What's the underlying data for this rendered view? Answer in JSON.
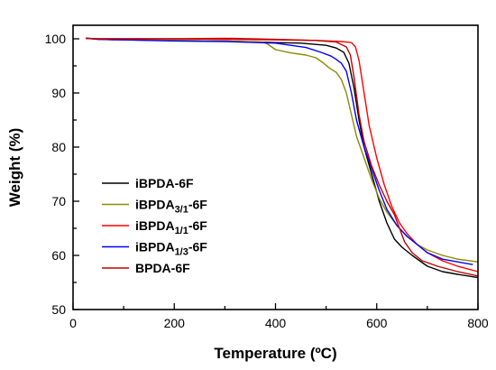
{
  "chart_data": {
    "type": "line",
    "xlabel": "Temperature (ºC)",
    "ylabel": "Weight (%)",
    "xlim": [
      0,
      800
    ],
    "ylim": [
      50,
      102.5
    ],
    "xticks": [
      0,
      200,
      400,
      600,
      800
    ],
    "yticks": [
      50,
      60,
      70,
      80,
      90,
      100
    ],
    "grid": false,
    "legend": "lower-left",
    "series": [
      {
        "name_main": "iBPDA",
        "name_sub": "",
        "name_tail": "-6F",
        "color": "#000000",
        "points": [
          [
            25,
            100.1
          ],
          [
            30,
            100.1
          ],
          [
            50,
            99.9
          ],
          [
            100,
            99.8
          ],
          [
            200,
            99.7
          ],
          [
            300,
            99.6
          ],
          [
            400,
            99.3
          ],
          [
            450,
            99.2
          ],
          [
            500,
            98.8
          ],
          [
            520,
            98.3
          ],
          [
            535,
            97.5
          ],
          [
            545,
            95.5
          ],
          [
            555,
            91
          ],
          [
            565,
            85
          ],
          [
            575,
            80
          ],
          [
            590,
            75
          ],
          [
            605,
            70
          ],
          [
            620,
            66
          ],
          [
            635,
            63
          ],
          [
            650,
            61.5
          ],
          [
            670,
            60
          ],
          [
            700,
            58
          ],
          [
            730,
            57
          ],
          [
            760,
            56.5
          ],
          [
            800,
            55.9
          ]
        ]
      },
      {
        "name_main": "iBPDA",
        "name_sub": "3/1",
        "name_tail": "-6F",
        "color": "#8b8b00",
        "points": [
          [
            25,
            100.1
          ],
          [
            50,
            99.9
          ],
          [
            100,
            99.8
          ],
          [
            200,
            99.7
          ],
          [
            300,
            99.6
          ],
          [
            375,
            99.4
          ],
          [
            385,
            99
          ],
          [
            400,
            98
          ],
          [
            430,
            97.4
          ],
          [
            460,
            97
          ],
          [
            480,
            96.5
          ],
          [
            495,
            95.5
          ],
          [
            505,
            94.7
          ],
          [
            520,
            93.8
          ],
          [
            530,
            92.5
          ],
          [
            540,
            90
          ],
          [
            550,
            86
          ],
          [
            560,
            82
          ],
          [
            575,
            78
          ],
          [
            590,
            74
          ],
          [
            605,
            70.5
          ],
          [
            620,
            68
          ],
          [
            640,
            65.5
          ],
          [
            660,
            63.5
          ],
          [
            680,
            62
          ],
          [
            700,
            61
          ],
          [
            730,
            60
          ],
          [
            760,
            59.3
          ],
          [
            800,
            58.8
          ]
        ]
      },
      {
        "name_main": "iBPDA",
        "name_sub": "1/1",
        "name_tail": "-6F",
        "color": "#ff0000",
        "points": [
          [
            25,
            100.1
          ],
          [
            50,
            100.0
          ],
          [
            100,
            100.0
          ],
          [
            200,
            100.0
          ],
          [
            300,
            99.9
          ],
          [
            400,
            99.8
          ],
          [
            480,
            99.7
          ],
          [
            530,
            99.5
          ],
          [
            550,
            99.3
          ],
          [
            558,
            98.5
          ],
          [
            565,
            96
          ],
          [
            575,
            90
          ],
          [
            585,
            84
          ],
          [
            600,
            78
          ],
          [
            615,
            73
          ],
          [
            630,
            69
          ],
          [
            645,
            66
          ],
          [
            660,
            64
          ],
          [
            680,
            62
          ],
          [
            700,
            60.5
          ],
          [
            730,
            59
          ],
          [
            760,
            58
          ],
          [
            800,
            57
          ]
        ]
      },
      {
        "name_main": "iBPDA",
        "name_sub": "1/3",
        "name_tail": "-6F",
        "color": "#0000ff",
        "points": [
          [
            25,
            100.1
          ],
          [
            50,
            99.9
          ],
          [
            100,
            99.8
          ],
          [
            200,
            99.6
          ],
          [
            300,
            99.5
          ],
          [
            400,
            99.2
          ],
          [
            460,
            98.4
          ],
          [
            490,
            97.5
          ],
          [
            510,
            96.8
          ],
          [
            520,
            96.2
          ],
          [
            530,
            95.5
          ],
          [
            540,
            94
          ],
          [
            550,
            90
          ],
          [
            560,
            85
          ],
          [
            575,
            80
          ],
          [
            590,
            76
          ],
          [
            605,
            72
          ],
          [
            620,
            68.5
          ],
          [
            640,
            65.5
          ],
          [
            660,
            63.5
          ],
          [
            680,
            62
          ],
          [
            700,
            60.5
          ],
          [
            730,
            59.3
          ],
          [
            760,
            58.8
          ],
          [
            790,
            58.3
          ]
        ]
      },
      {
        "name_main": "BPDA",
        "name_sub": "",
        "name_tail": "-6F",
        "color": "#c00000",
        "points": [
          [
            25,
            100.1
          ],
          [
            50,
            100.0
          ],
          [
            100,
            100.0
          ],
          [
            200,
            100.0
          ],
          [
            300,
            100.1
          ],
          [
            400,
            99.9
          ],
          [
            480,
            99.7
          ],
          [
            520,
            99.4
          ],
          [
            540,
            98.5
          ],
          [
            548,
            97
          ],
          [
            555,
            93
          ],
          [
            565,
            86
          ],
          [
            575,
            81
          ],
          [
            590,
            76.5
          ],
          [
            605,
            73
          ],
          [
            620,
            70
          ],
          [
            635,
            67.5
          ],
          [
            645,
            65
          ],
          [
            655,
            62.5
          ],
          [
            670,
            60.5
          ],
          [
            690,
            59
          ],
          [
            720,
            58
          ],
          [
            760,
            57
          ],
          [
            800,
            56.2
          ]
        ]
      }
    ]
  }
}
